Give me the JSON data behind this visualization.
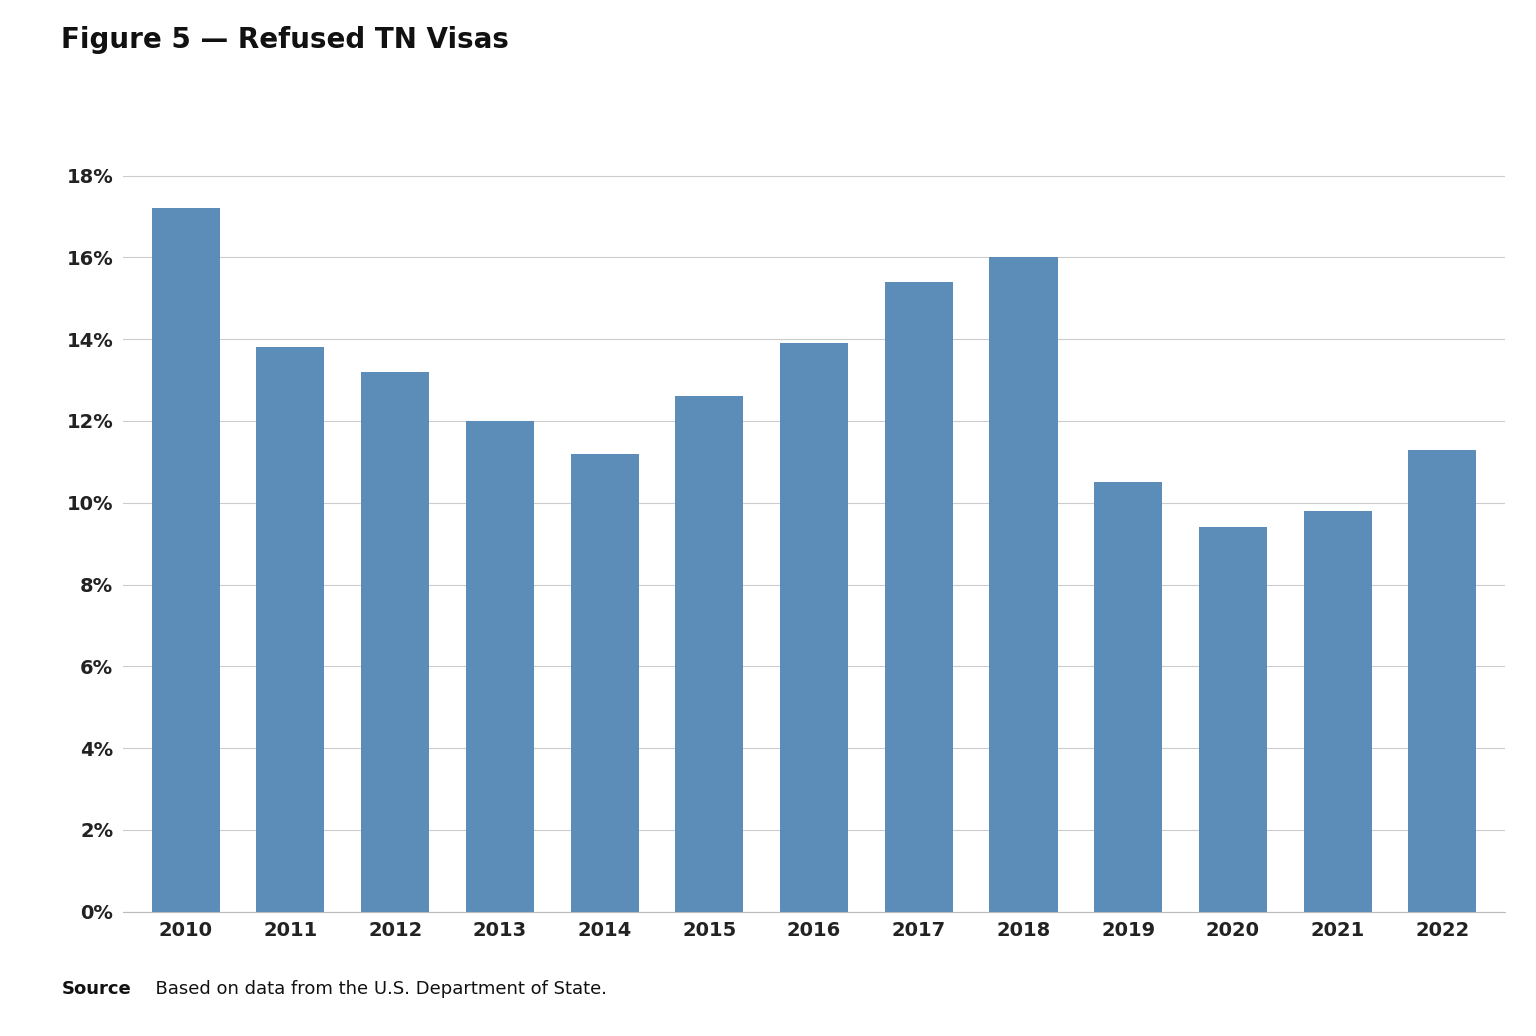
{
  "title": "Figure 5 — Refused TN Visas",
  "years": [
    "2010",
    "2011",
    "2012",
    "2013",
    "2014",
    "2015",
    "2016",
    "2017",
    "2018",
    "2019",
    "2020",
    "2021",
    "2022"
  ],
  "values": [
    0.172,
    0.138,
    0.132,
    0.12,
    0.112,
    0.126,
    0.139,
    0.154,
    0.16,
    0.105,
    0.094,
    0.098,
    0.113
  ],
  "bar_color": "#5b8db8",
  "background_color": "#ffffff",
  "plot_background": "#ffffff",
  "grid_color": "#cccccc",
  "ylim": [
    0,
    0.19
  ],
  "yticks": [
    0.0,
    0.02,
    0.04,
    0.06,
    0.08,
    0.1,
    0.12,
    0.14,
    0.16,
    0.18
  ],
  "ytick_labels": [
    "0%",
    "2%",
    "4%",
    "6%",
    "8%",
    "10%",
    "12%",
    "14%",
    "16%",
    "18%"
  ],
  "source_bold": "Source",
  "source_rest": "  Based on data from the U.S. Department of State.",
  "footer_bg": "#eef0f2"
}
